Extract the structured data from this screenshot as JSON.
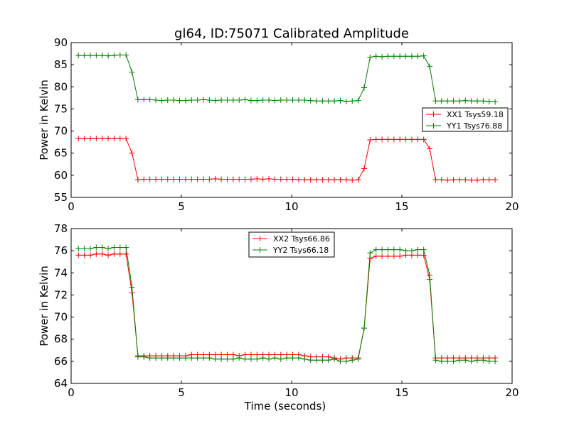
{
  "figure": {
    "title": "gl64, ID:75071 Calibrated Amplitude"
  },
  "chart_data": [
    {
      "type": "line",
      "title": "gl64, ID:75071 Calibrated Amplitude",
      "xlabel": "",
      "ylabel": "Power in Kelvin",
      "xlim": [
        0,
        20
      ],
      "ylim": [
        55,
        90
      ],
      "xticks": [
        "0",
        "5",
        "10",
        "15",
        "20"
      ],
      "yticks": [
        "55",
        "60",
        "65",
        "70",
        "75",
        "80",
        "85",
        "90"
      ],
      "grid": false,
      "legend_position": "right",
      "x": [
        0.33,
        0.6,
        0.87,
        1.14,
        1.41,
        1.68,
        1.95,
        2.22,
        2.49,
        2.76,
        3.03,
        3.3,
        3.57,
        3.84,
        4.11,
        4.38,
        4.65,
        4.92,
        5.19,
        5.46,
        5.73,
        6.0,
        6.27,
        6.54,
        6.81,
        7.08,
        7.35,
        7.62,
        7.89,
        8.16,
        8.43,
        8.7,
        8.97,
        9.24,
        9.51,
        9.78,
        10.05,
        10.32,
        10.59,
        10.86,
        11.13,
        11.4,
        11.67,
        11.94,
        12.21,
        12.48,
        12.75,
        13.02,
        13.29,
        13.56,
        13.83,
        14.1,
        14.37,
        14.64,
        14.91,
        15.18,
        15.45,
        15.72,
        15.99,
        16.26,
        16.53,
        16.8,
        17.07,
        17.34,
        17.61,
        17.88,
        18.15,
        18.42,
        18.69,
        18.96,
        19.23
      ],
      "series": [
        {
          "name": "XX1 Tsys59.18",
          "color": "#ff0000",
          "values": [
            68.3,
            68.3,
            68.3,
            68.3,
            68.3,
            68.3,
            68.3,
            68.3,
            68.3,
            65.0,
            59.0,
            59.1,
            59.1,
            59.1,
            59.1,
            59.1,
            59.1,
            59.1,
            59.1,
            59.1,
            59.1,
            59.1,
            59.1,
            59.2,
            59.1,
            59.1,
            59.1,
            59.1,
            59.1,
            59.1,
            59.2,
            59.1,
            59.2,
            59.1,
            59.1,
            59.1,
            59.1,
            59.0,
            59.0,
            59.0,
            59.0,
            59.0,
            59.0,
            59.0,
            59.0,
            59.0,
            58.9,
            59.0,
            61.5,
            68.0,
            68.1,
            68.1,
            68.1,
            68.1,
            68.1,
            68.1,
            68.1,
            68.1,
            68.1,
            66.0,
            59.0,
            59.0,
            58.9,
            59.0,
            59.0,
            59.0,
            58.9,
            58.9,
            59.0,
            59.0,
            59.0
          ]
        },
        {
          "name": "YY1 Tsys76.88",
          "color": "#008000",
          "values": [
            87.1,
            87.1,
            87.1,
            87.1,
            87.1,
            87.0,
            87.1,
            87.2,
            87.2,
            83.3,
            77.1,
            77.1,
            77.1,
            77.0,
            76.9,
            77.0,
            77.0,
            76.9,
            76.9,
            77.0,
            77.0,
            77.1,
            77.0,
            76.9,
            77.0,
            77.0,
            77.0,
            77.0,
            77.1,
            76.9,
            76.9,
            77.0,
            77.0,
            76.9,
            77.0,
            77.0,
            77.0,
            77.0,
            77.0,
            76.9,
            76.8,
            76.8,
            76.8,
            76.8,
            76.9,
            76.7,
            76.8,
            76.9,
            79.8,
            86.7,
            86.9,
            86.8,
            86.9,
            86.9,
            86.9,
            86.9,
            86.9,
            86.9,
            87.0,
            84.6,
            76.8,
            76.8,
            76.8,
            76.8,
            76.8,
            76.9,
            76.8,
            76.8,
            76.8,
            76.7,
            76.6
          ]
        }
      ]
    },
    {
      "type": "line",
      "title": "",
      "xlabel": "Time (seconds)",
      "ylabel": "Power in Kelvin",
      "xlim": [
        0,
        20
      ],
      "ylim": [
        64,
        78
      ],
      "xticks": [
        "0",
        "5",
        "10",
        "15",
        "20"
      ],
      "yticks": [
        "64",
        "66",
        "68",
        "70",
        "72",
        "74",
        "76",
        "78"
      ],
      "grid": false,
      "legend_position": "top-center",
      "x": [
        0.33,
        0.6,
        0.87,
        1.14,
        1.41,
        1.68,
        1.95,
        2.22,
        2.49,
        2.76,
        3.03,
        3.3,
        3.57,
        3.84,
        4.11,
        4.38,
        4.65,
        4.92,
        5.19,
        5.46,
        5.73,
        6.0,
        6.27,
        6.54,
        6.81,
        7.08,
        7.35,
        7.62,
        7.89,
        8.16,
        8.43,
        8.7,
        8.97,
        9.24,
        9.51,
        9.78,
        10.05,
        10.32,
        10.59,
        10.86,
        11.13,
        11.4,
        11.67,
        11.94,
        12.21,
        12.48,
        12.75,
        13.02,
        13.29,
        13.56,
        13.83,
        14.1,
        14.37,
        14.64,
        14.91,
        15.18,
        15.45,
        15.72,
        15.99,
        16.26,
        16.53,
        16.8,
        17.07,
        17.34,
        17.61,
        17.88,
        18.15,
        18.42,
        18.69,
        18.96,
        19.23
      ],
      "series": [
        {
          "name": "XX2 Tsys66.86",
          "color": "#ff0000",
          "values": [
            75.6,
            75.6,
            75.6,
            75.7,
            75.7,
            75.6,
            75.7,
            75.7,
            75.7,
            72.2,
            66.5,
            66.5,
            66.5,
            66.5,
            66.5,
            66.5,
            66.5,
            66.5,
            66.5,
            66.6,
            66.6,
            66.6,
            66.6,
            66.6,
            66.6,
            66.6,
            66.6,
            66.5,
            66.6,
            66.6,
            66.6,
            66.6,
            66.6,
            66.6,
            66.6,
            66.6,
            66.6,
            66.6,
            66.5,
            66.4,
            66.4,
            66.4,
            66.4,
            66.3,
            66.2,
            66.3,
            66.3,
            66.3,
            69.0,
            75.3,
            75.5,
            75.5,
            75.5,
            75.5,
            75.5,
            75.6,
            75.6,
            75.6,
            75.6,
            73.4,
            66.3,
            66.3,
            66.3,
            66.3,
            66.3,
            66.3,
            66.3,
            66.3,
            66.3,
            66.3,
            66.3
          ]
        },
        {
          "name": "YY2 Tsys66.18",
          "color": "#008000",
          "values": [
            76.2,
            76.2,
            76.2,
            76.3,
            76.3,
            76.2,
            76.3,
            76.3,
            76.3,
            72.7,
            66.4,
            66.4,
            66.3,
            66.3,
            66.3,
            66.3,
            66.3,
            66.3,
            66.3,
            66.3,
            66.3,
            66.3,
            66.3,
            66.2,
            66.2,
            66.2,
            66.2,
            66.3,
            66.2,
            66.2,
            66.2,
            66.3,
            66.2,
            66.3,
            66.2,
            66.3,
            66.3,
            66.3,
            66.2,
            66.1,
            66.1,
            66.1,
            66.1,
            66.2,
            66.0,
            66.0,
            66.1,
            66.2,
            69.0,
            75.8,
            76.1,
            76.1,
            76.1,
            76.1,
            76.1,
            76.0,
            76.0,
            76.1,
            76.1,
            73.8,
            66.1,
            66.0,
            66.0,
            66.0,
            66.1,
            66.1,
            66.0,
            66.1,
            66.1,
            66.0,
            66.0
          ]
        }
      ]
    }
  ]
}
